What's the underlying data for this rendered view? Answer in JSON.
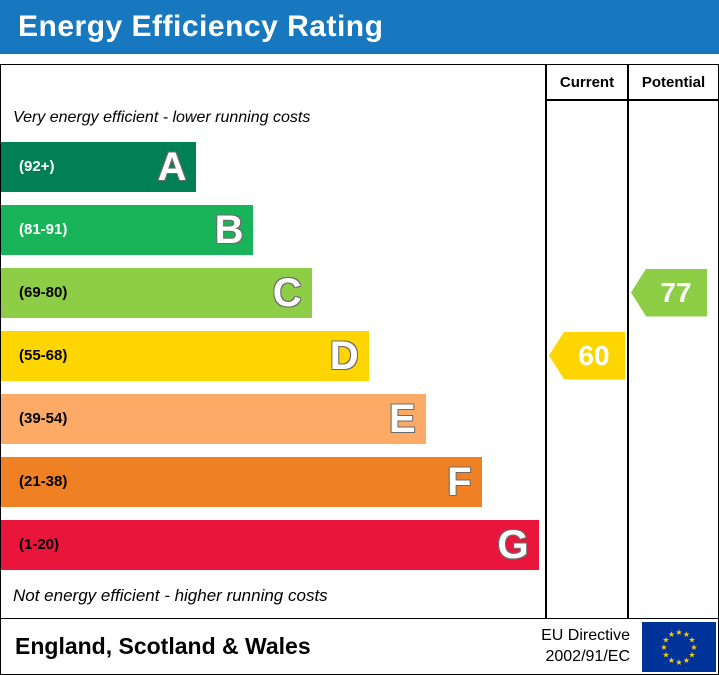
{
  "title_bar": {
    "title": "Energy Efficiency Rating",
    "bg_color": "#1878bf"
  },
  "table": {
    "current_header": "Current",
    "potential_header": "Potential"
  },
  "notes": {
    "top": "Very energy efficient - lower running costs",
    "bottom": "Not energy efficient - higher running costs"
  },
  "footer": {
    "region": "England, Scotland & Wales",
    "directive": [
      "EU Directive",
      "2002/91/EC"
    ],
    "flag_icon": "eu-flag-icon"
  },
  "chart_data": {
    "type": "bar",
    "orientation": "horizontal",
    "title": "Energy Efficiency Rating",
    "bands": [
      {
        "letter": "A",
        "label": "(92+)",
        "color": "#008054",
        "label_color": "#ffffff",
        "width_pct": 36
      },
      {
        "letter": "B",
        "label": "(81-91)",
        "color": "#19b459",
        "label_color": "#ffffff",
        "width_pct": 46.5
      },
      {
        "letter": "C",
        "label": "(69-80)",
        "color": "#8dce46",
        "label_color": "#000000",
        "width_pct": 57.2
      },
      {
        "letter": "D",
        "label": "(55-68)",
        "color": "#ffd500",
        "label_color": "#000000",
        "width_pct": 67.7
      },
      {
        "letter": "E",
        "label": "(39-54)",
        "color": "#fcaa65",
        "label_color": "#000000",
        "width_pct": 78.2
      },
      {
        "letter": "F",
        "label": "(21-38)",
        "color": "#ef8023",
        "label_color": "#000000",
        "width_pct": 88.5
      },
      {
        "letter": "G",
        "label": "(1-20)",
        "color": "#e9153b",
        "label_color": "#000000",
        "width_pct": 99
      }
    ],
    "current": {
      "value": 60,
      "band": "D",
      "color": "#ffd500"
    },
    "potential": {
      "value": 77,
      "band": "C",
      "color": "#8dce46"
    }
  }
}
